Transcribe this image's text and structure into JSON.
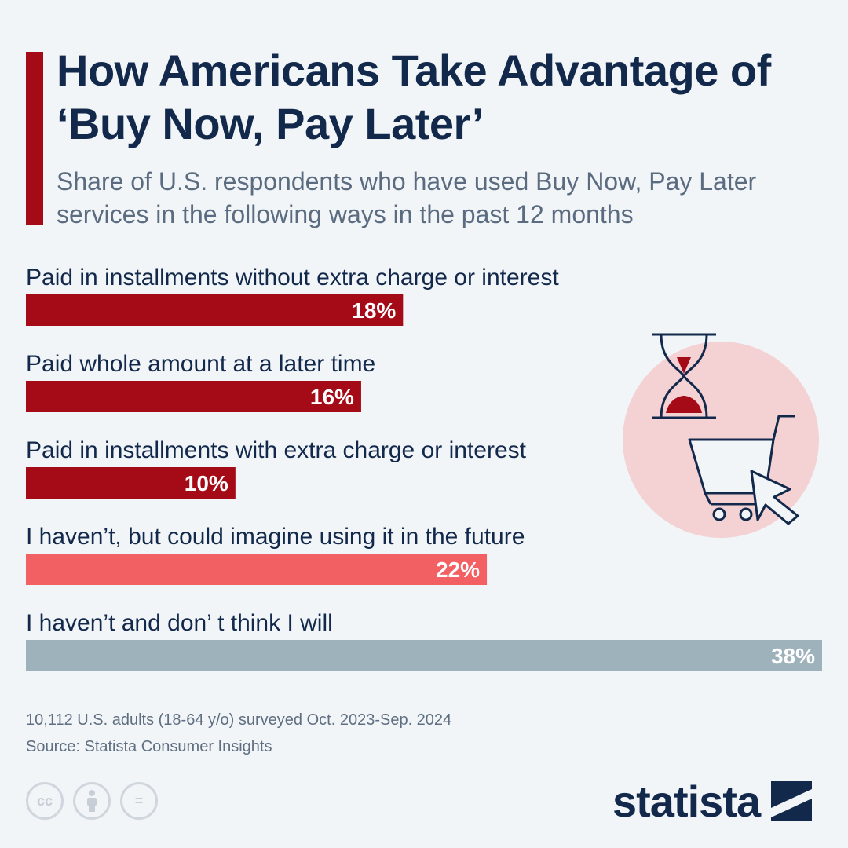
{
  "title": "How Americans Take Advantage of ‘Buy Now, Pay Later’",
  "subtitle": "Share of U.S. respondents who have used Buy Now, Pay Later services in the following ways in the past 12 months",
  "chart_data": {
    "type": "bar",
    "orientation": "horizontal",
    "categories": [
      "Paid in installments without extra charge or interest",
      "Paid whole amount at a later time",
      "Paid in installments with extra charge or interest",
      "I haven’t, but could imagine using it in the future",
      "I haven’t and don’ t think I will"
    ],
    "values": [
      18,
      16,
      10,
      22,
      38
    ],
    "value_labels": [
      "18%",
      "16%",
      "10%",
      "22%",
      "38%"
    ],
    "bar_colors": [
      "#a50b17",
      "#a50b17",
      "#a50b17",
      "#f26064",
      "#9eb2bc"
    ],
    "xlim": [
      0,
      38
    ],
    "grid": false,
    "legend": "none"
  },
  "footer": {
    "note": "10,112 U.S. adults (18-64 y/o) surveyed Oct. 2023-Sep. 2024",
    "source": "Source: Statista Consumer Insights"
  },
  "license_icons": [
    "cc-icon",
    "attribution-icon",
    "no-derivatives-icon"
  ],
  "license_glyphs": {
    "cc": "cc",
    "nd": "="
  },
  "brand": {
    "name": "statista"
  },
  "colors": {
    "accent": "#a50b17",
    "highlight": "#f26064",
    "neutral_bar": "#9eb2bc",
    "title": "#13294b",
    "illustration_bg": "#f4d2d4"
  }
}
